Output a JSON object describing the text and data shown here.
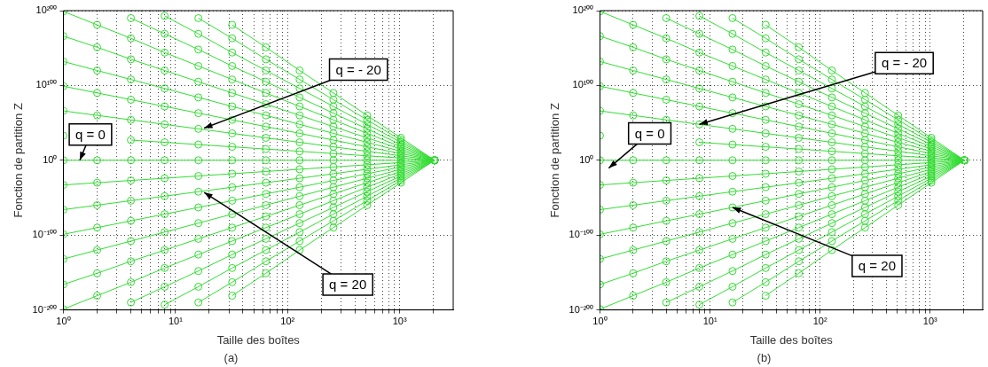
{
  "chart_data": [
    {
      "type": "line",
      "title": "(a)",
      "xlabel": "Taille des boîtes",
      "ylabel": "Fonction de partition Z",
      "log": "xy",
      "grid": true,
      "marker": "circle",
      "x": [
        1,
        2,
        4,
        8,
        16,
        32,
        64,
        128,
        256,
        512,
        1024,
        2048
      ],
      "xlim": [
        1,
        3000
      ],
      "ylim": [
        1e-200,
        1e+200
      ],
      "xticks": [
        {
          "value": 1,
          "label": "10⁰"
        },
        {
          "value": 2,
          "label": null
        },
        {
          "value": 3,
          "label": null
        },
        {
          "value": 4,
          "label": null
        },
        {
          "value": 5,
          "label": null
        },
        {
          "value": 6,
          "label": null
        },
        {
          "value": 7,
          "label": null
        },
        {
          "value": 8,
          "label": null
        },
        {
          "value": 9,
          "label": null
        },
        {
          "value": 10,
          "label": "10¹"
        },
        {
          "value": 20,
          "label": null
        },
        {
          "value": 30,
          "label": null
        },
        {
          "value": 40,
          "label": null
        },
        {
          "value": 50,
          "label": null
        },
        {
          "value": 60,
          "label": null
        },
        {
          "value": 70,
          "label": null
        },
        {
          "value": 80,
          "label": null
        },
        {
          "value": 90,
          "label": null
        },
        {
          "value": 100,
          "label": "10²"
        },
        {
          "value": 200,
          "label": null
        },
        {
          "value": 300,
          "label": null
        },
        {
          "value": 400,
          "label": null
        },
        {
          "value": 500,
          "label": null
        },
        {
          "value": 600,
          "label": null
        },
        {
          "value": 700,
          "label": null
        },
        {
          "value": 800,
          "label": null
        },
        {
          "value": 900,
          "label": null
        },
        {
          "value": 1000,
          "label": "10³"
        },
        {
          "value": 2000,
          "label": null
        }
      ],
      "yticks": [
        {
          "value": 1e-200,
          "label": "10⁻²⁰⁰"
        },
        {
          "value": 1e-100,
          "label": "10⁻¹⁰⁰"
        },
        {
          "value": 1,
          "label": "10⁰"
        },
        {
          "value": 1e+100,
          "label": "10¹⁰⁰"
        },
        {
          "value": 1e+200,
          "label": "10²⁰⁰"
        }
      ],
      "annotations": [
        {
          "text": "q = 0",
          "x": 1.4,
          "y": 1
        },
        {
          "text": "q = - 20",
          "x": 18,
          "y": 1e+43
        },
        {
          "text": "q = 20",
          "x": 18,
          "y": 1e-43
        }
      ],
      "series": [
        {
          "color": "#33dd33",
          "values": [
            null,
            null,
            null,
            null,
            null,
            1e+181,
            1e+151,
            1e+120,
            1e+90,
            1e+60,
            1e+30,
            1
          ]
        },
        {
          "color": "#33dd33",
          "values": [
            null,
            null,
            null,
            null,
            1e+190,
            1e+163,
            1e+135,
            1e+108,
            1e+81,
            1e+54,
            1e+27,
            1
          ]
        },
        {
          "color": "#33dd33",
          "values": [
            null,
            null,
            null,
            1e+193,
            1e+169,
            1e+144,
            1e+120,
            1e+96,
            1e+72,
            1e+48,
            1e+24,
            1
          ]
        },
        {
          "color": "#33dd33",
          "values": [
            null,
            null,
            1e+190,
            1e+169,
            1e+148,
            1e+126,
            1e+105,
            1e+84,
            1e+63,
            1e+42,
            1e+21,
            1
          ]
        },
        {
          "color": "#33dd33",
          "values": [
            1e+199,
            1e+181,
            1e+163,
            1e+144,
            1e+126,
            1e+108,
            1e+90,
            1e+72,
            1e+54,
            1e+36,
            1e+18,
            1
          ]
        },
        {
          "color": "#33dd33",
          "values": [
            1e+166,
            1e+151,
            1e+135,
            1e+120,
            1e+105,
            1e+90,
            1e+75,
            1e+60,
            1e+45,
            1e+30,
            1000000000000000.0,
            1
          ]
        },
        {
          "color": "#33dd33",
          "values": [
            1e+132,
            1e+120,
            1e+108,
            1e+96,
            1e+84,
            1e+72,
            1e+60,
            1e+48,
            1e+36,
            1e+24,
            1000000000000.0,
            1
          ]
        },
        {
          "color": "#33dd33",
          "values": [
            1e+99,
            1e+90,
            1e+81,
            1e+72,
            1e+63,
            1e+54,
            1e+45,
            1e+36,
            1e+27,
            1e+18,
            1000000000.0,
            1
          ]
        },
        {
          "color": "#33dd33",
          "values": [
            1e+66,
            1e+60,
            1e+54,
            1e+48,
            1e+42,
            1e+36,
            1e+30,
            1e+24,
            1e+18,
            1000000000000.0,
            1000000.0,
            1
          ]
        },
        {
          "color": "#33dd33",
          "values": [
            1e+33,
            null,
            1e+27,
            1e+24,
            1e+21,
            1e+18,
            1000000000000000.0,
            1000000000000.0,
            1000000000.0,
            1000000.0,
            1000.0,
            1
          ]
        },
        {
          "color": "#33dd33",
          "values": [
            1,
            1,
            1,
            1,
            1,
            1,
            1,
            1,
            1,
            1,
            1,
            1
          ]
        },
        {
          "color": "#33dd33",
          "values": [
            1e-33,
            1e-30,
            1e-27,
            1e-24,
            1e-21,
            1e-18,
            1e-15,
            1e-12,
            1e-09,
            1e-06,
            0.001,
            1
          ]
        },
        {
          "color": "#33dd33",
          "values": [
            1e-66,
            1e-60,
            1e-54,
            1e-48,
            1e-42,
            1e-36,
            1e-30,
            1e-24,
            1e-18,
            1e-12,
            1e-06,
            1
          ]
        },
        {
          "color": "#33dd33",
          "values": [
            1e-99,
            1e-90,
            1e-81,
            1e-72,
            1e-63,
            1e-54,
            1e-45,
            1e-36,
            1e-27,
            1e-18,
            1e-09,
            1
          ]
        },
        {
          "color": "#33dd33",
          "values": [
            1e-132,
            1e-120,
            1e-108,
            1e-96,
            1e-84,
            1e-72,
            1e-60,
            1e-48,
            1e-36,
            1e-24,
            1e-12,
            1
          ]
        },
        {
          "color": "#33dd33",
          "values": [
            1e-166,
            1e-151,
            1e-135,
            1e-120,
            1e-105,
            1e-90,
            1e-75,
            1e-60,
            1e-45,
            1e-30,
            1e-15,
            1
          ]
        },
        {
          "color": "#33dd33",
          "values": [
            1e-199,
            1e-181,
            1e-163,
            1e-144,
            1e-126,
            1e-108,
            1e-90,
            1e-72,
            1e-54,
            1e-36,
            1e-18,
            1
          ]
        },
        {
          "color": "#33dd33",
          "values": [
            null,
            null,
            1e-190,
            1e-169,
            1e-148,
            1e-126,
            1e-105,
            1e-84,
            1e-63,
            1e-42,
            1e-21,
            1
          ]
        },
        {
          "color": "#33dd33",
          "values": [
            null,
            null,
            null,
            1e-193,
            1e-169,
            1e-144,
            1e-120,
            1e-96,
            1e-72,
            1e-48,
            1e-24,
            1
          ]
        },
        {
          "color": "#33dd33",
          "values": [
            null,
            null,
            null,
            null,
            1e-190,
            1e-163,
            1e-135,
            1e-108,
            1e-81,
            1e-54,
            1e-27,
            1
          ]
        },
        {
          "color": "#33dd33",
          "values": [
            null,
            null,
            null,
            null,
            null,
            1e-181,
            1e-151,
            1e-120,
            1e-90,
            1e-60,
            1e-30,
            1
          ]
        }
      ]
    },
    {
      "type": "line",
      "title": "(b)",
      "xlabel": "Taille des boîtes",
      "ylabel": "Fonction de partition Z",
      "log": "xy",
      "grid": true,
      "marker": "circle",
      "x": [
        1,
        2,
        4,
        8,
        16,
        32,
        64,
        128,
        256,
        512,
        1024,
        2048
      ],
      "xlim": [
        1,
        3000
      ],
      "ylim": [
        1e-200,
        1e+200
      ],
      "xticks": [
        {
          "value": 1,
          "label": "10⁰"
        },
        {
          "value": 2,
          "label": null
        },
        {
          "value": 3,
          "label": null
        },
        {
          "value": 4,
          "label": null
        },
        {
          "value": 5,
          "label": null
        },
        {
          "value": 6,
          "label": null
        },
        {
          "value": 7,
          "label": null
        },
        {
          "value": 8,
          "label": null
        },
        {
          "value": 9,
          "label": null
        },
        {
          "value": 10,
          "label": "10¹"
        },
        {
          "value": 20,
          "label": null
        },
        {
          "value": 30,
          "label": null
        },
        {
          "value": 40,
          "label": null
        },
        {
          "value": 50,
          "label": null
        },
        {
          "value": 60,
          "label": null
        },
        {
          "value": 70,
          "label": null
        },
        {
          "value": 80,
          "label": null
        },
        {
          "value": 90,
          "label": null
        },
        {
          "value": 100,
          "label": "10²"
        },
        {
          "value": 200,
          "label": null
        },
        {
          "value": 300,
          "label": null
        },
        {
          "value": 400,
          "label": null
        },
        {
          "value": 500,
          "label": null
        },
        {
          "value": 600,
          "label": null
        },
        {
          "value": 700,
          "label": null
        },
        {
          "value": 800,
          "label": null
        },
        {
          "value": 900,
          "label": null
        },
        {
          "value": 1000,
          "label": "10³"
        },
        {
          "value": 2000,
          "label": null
        }
      ],
      "yticks": [
        {
          "value": 1e-200,
          "label": "10⁻²⁰⁰"
        },
        {
          "value": 1e-100,
          "label": "10⁻¹⁰⁰"
        },
        {
          "value": 1,
          "label": "10⁰"
        },
        {
          "value": 1e+100,
          "label": "10¹⁰⁰"
        },
        {
          "value": 1e+200,
          "label": "10²⁰⁰"
        }
      ],
      "annotations": [
        "q = 0",
        {
          "text": "q = - 20",
          "x": 8,
          "y": 1e+48
        },
        {
          "text": "q = 20",
          "x": 16,
          "y": 1e-63
        }
      ],
      "series": [
        {
          "color": "#33dd33",
          "values": [
            null,
            null,
            null,
            null,
            null,
            1e+181,
            1e+151,
            1e+120,
            1e+90,
            1e+60,
            1e+30,
            1
          ]
        },
        {
          "color": "#33dd33",
          "values": [
            null,
            null,
            null,
            null,
            1e+190,
            1e+163,
            1e+135,
            1e+108,
            1e+81,
            1e+54,
            1e+27,
            1
          ]
        },
        {
          "color": "#33dd33",
          "values": [
            null,
            null,
            null,
            1e+193,
            1e+169,
            1e+144,
            1e+120,
            1e+96,
            1e+72,
            1e+48,
            1e+24,
            1
          ]
        },
        {
          "color": "#33dd33",
          "values": [
            null,
            null,
            1e+190,
            1e+169,
            1e+148,
            1e+126,
            1e+105,
            1e+84,
            1e+63,
            1e+42,
            1e+21,
            1
          ]
        },
        {
          "color": "#33dd33",
          "values": [
            1e+199,
            1e+181,
            1e+163,
            1e+144,
            1e+126,
            1e+108,
            1e+90,
            1e+72,
            1e+54,
            1e+36,
            1e+18,
            1
          ]
        },
        {
          "color": "#33dd33",
          "values": [
            1e+166,
            1e+151,
            1e+135,
            1e+120,
            1e+105,
            1e+90,
            1e+75,
            1e+60,
            1e+45,
            1e+30,
            1000000000000000.0,
            1
          ]
        },
        {
          "color": "#33dd33",
          "values": [
            1e+132,
            1e+120,
            1e+108,
            1e+96,
            1e+84,
            1e+72,
            1e+60,
            1e+48,
            1e+36,
            1e+24,
            1000000000000.0,
            1
          ]
        },
        {
          "color": "#33dd33",
          "values": [
            1e+99,
            1e+90,
            1e+81,
            1e+72,
            1e+63,
            1e+54,
            1e+45,
            1e+36,
            1e+27,
            1e+18,
            1000000000.0,
            1
          ]
        },
        {
          "color": "#33dd33",
          "values": [
            1e+66,
            1e+60,
            1e+54,
            1e+48,
            1e+42,
            1e+36,
            1e+30,
            1e+24,
            1e+18,
            1000000000000.0,
            1000000.0,
            1
          ]
        },
        {
          "color": "#33dd33",
          "values": [
            1e+33,
            null,
            null,
            1e+24,
            1e+21,
            1e+18,
            1000000000000000.0,
            1000000000000.0,
            1000000000.0,
            1000000.0,
            1000.0,
            1
          ]
        },
        {
          "color": "#33dd33",
          "values": [
            1,
            1,
            1,
            1,
            1,
            1,
            1,
            1,
            1,
            1,
            1,
            1
          ]
        },
        {
          "color": "#33dd33",
          "values": [
            1e-33,
            1e-30,
            1e-27,
            1e-24,
            1e-21,
            1e-18,
            1e-15,
            1e-12,
            1e-09,
            1e-06,
            0.001,
            1
          ]
        },
        {
          "color": "#33dd33",
          "values": [
            1e-66,
            1e-60,
            1e-54,
            1e-48,
            1e-42,
            1e-36,
            1e-30,
            1e-24,
            1e-18,
            1e-12,
            1e-06,
            1
          ]
        },
        {
          "color": "#33dd33",
          "values": [
            1e-99,
            1e-90,
            1e-81,
            1e-72,
            1e-63,
            1e-54,
            1e-45,
            1e-36,
            1e-27,
            1e-18,
            1e-09,
            1
          ]
        },
        {
          "color": "#33dd33",
          "values": [
            1e-132,
            1e-120,
            1e-108,
            1e-96,
            1e-84,
            1e-72,
            1e-60,
            1e-48,
            1e-36,
            1e-24,
            1e-12,
            1
          ]
        },
        {
          "color": "#33dd33",
          "values": [
            1e-166,
            1e-151,
            1e-135,
            1e-120,
            1e-105,
            1e-90,
            1e-75,
            1e-60,
            1e-45,
            1e-30,
            1e-15,
            1
          ]
        },
        {
          "color": "#33dd33",
          "values": [
            1e-199,
            1e-181,
            1e-163,
            1e-144,
            1e-126,
            1e-108,
            1e-90,
            1e-72,
            1e-54,
            1e-36,
            1e-18,
            1
          ]
        },
        {
          "color": "#33dd33",
          "values": [
            null,
            null,
            1e-190,
            1e-169,
            1e-148,
            1e-126,
            1e-105,
            1e-84,
            1e-63,
            1e-42,
            1e-21,
            1
          ]
        },
        {
          "color": "#33dd33",
          "values": [
            null,
            null,
            null,
            1e-193,
            1e-169,
            1e-144,
            1e-120,
            1e-96,
            1e-72,
            1e-48,
            1e-24,
            1
          ]
        },
        {
          "color": "#33dd33",
          "values": [
            null,
            null,
            null,
            null,
            1e-190,
            1e-163,
            1e-135,
            1e-108,
            1e-81,
            1e-54,
            1e-27,
            1
          ]
        },
        {
          "color": "#33dd33",
          "values": [
            null,
            null,
            null,
            null,
            null,
            1e-181,
            1e-151,
            1e-120,
            1e-90,
            1e-60,
            1e-30,
            1
          ]
        }
      ]
    }
  ]
}
